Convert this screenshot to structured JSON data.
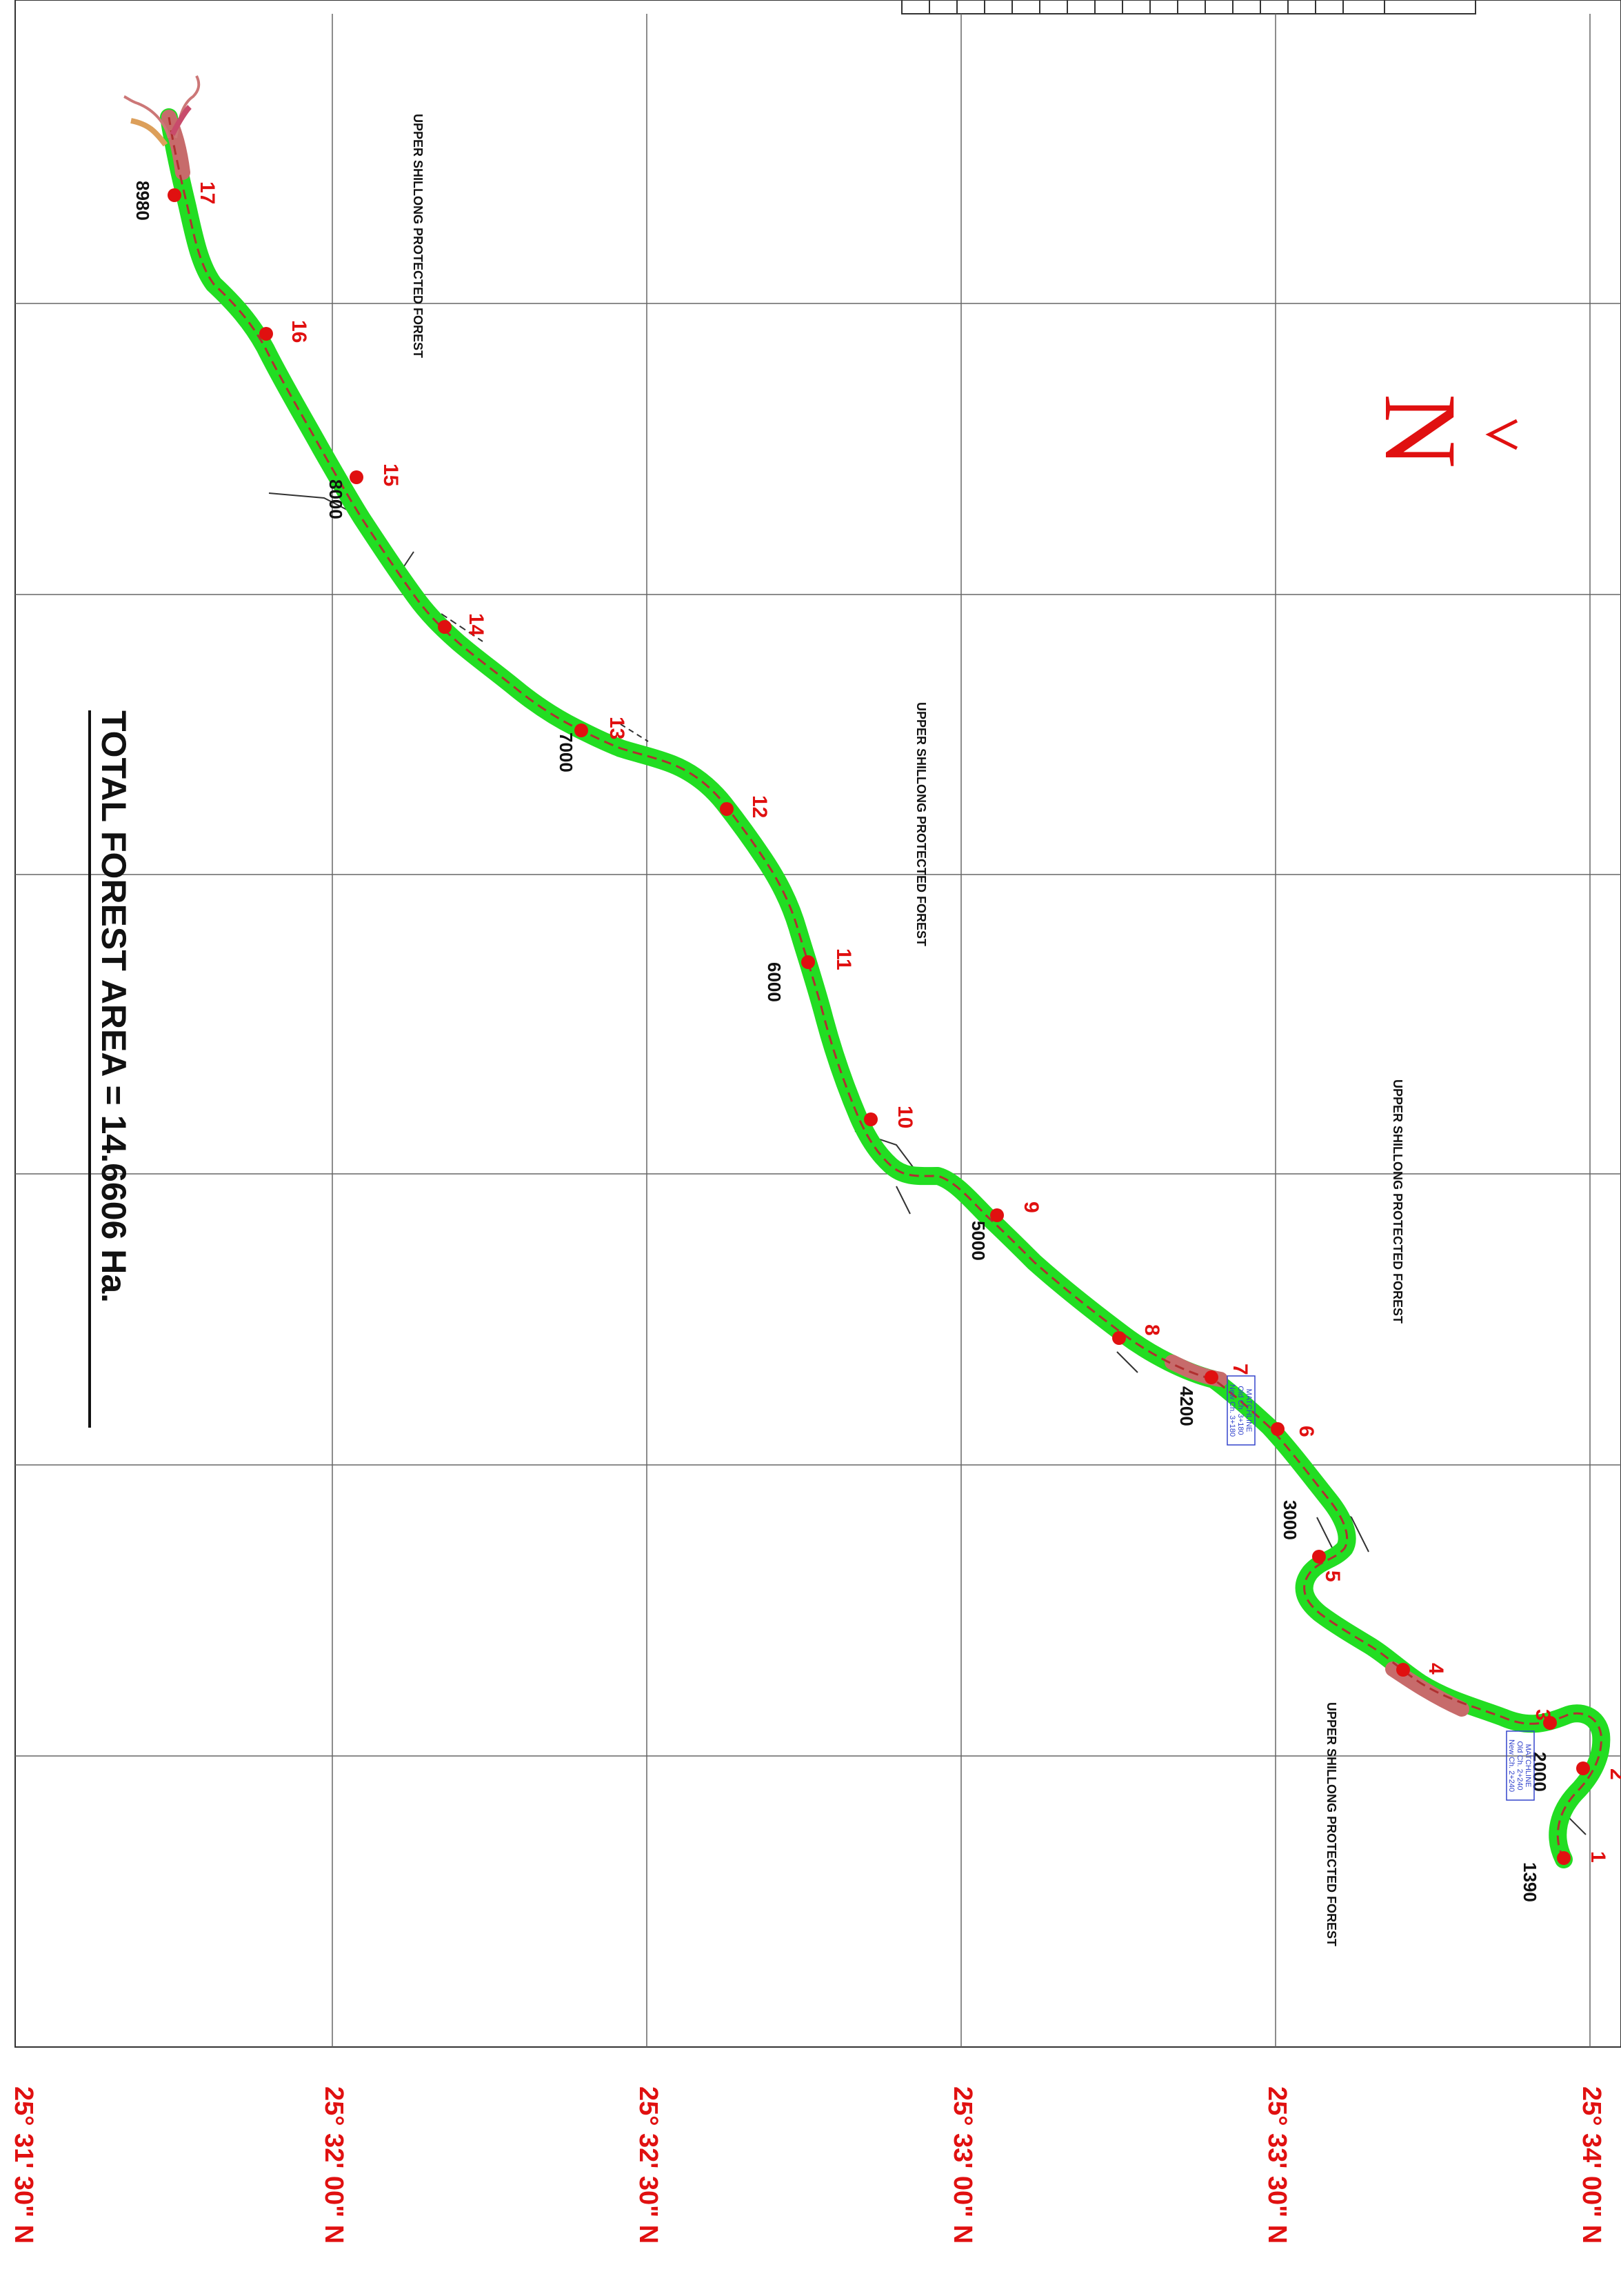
{
  "map": {
    "north_label": "N",
    "total_area_label": "TOTAL FOREST AREA = 14.6606 Ha.",
    "forest_labels": [
      "UPPER SHILLONG PROTECTED FOREST",
      "UPPER SHILLONG PROTECTED FOREST",
      "UPPER SHILLONG PROTECTED FOREST",
      "UPPER SHILLONG PROTECTED FOREST"
    ],
    "latitude_labels": [
      "25° 31' 30\" N",
      "25° 32' 00\" N",
      "25° 32' 30\" N",
      "25° 33' 00\" N",
      "25° 33' 30\" N",
      "25° 34' 00\" N"
    ],
    "points": [
      "1",
      "2",
      "3",
      "4",
      "5",
      "6",
      "7",
      "8",
      "9",
      "10",
      "11",
      "12",
      "13",
      "14",
      "15",
      "16",
      "17"
    ],
    "chainages": [
      "1390",
      "2000",
      "3000",
      "4200",
      "5000",
      "6000",
      "7000",
      "8000",
      "8980"
    ],
    "matchlines": [
      {
        "title": "MATCHLINE",
        "old": "Old Ch. 3+180",
        "new": "New Ch. 3+180"
      },
      {
        "title": "MATCHLINE",
        "old": "Old Ch. 2+240",
        "new": "New Ch. 2+240"
      }
    ],
    "colors": {
      "road": "#22dd22",
      "marker": "#e01010",
      "grid": "#555555",
      "labels_red": "#e01010",
      "matchline": "#3344cc"
    }
  }
}
